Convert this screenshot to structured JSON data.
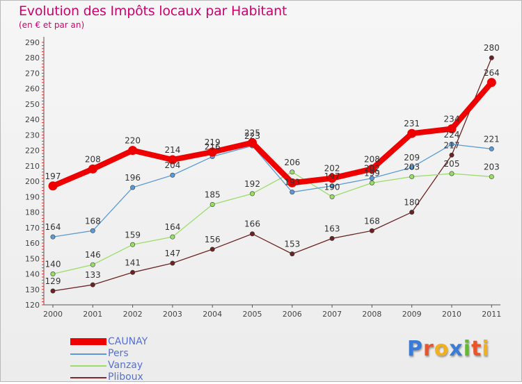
{
  "header": {
    "title": "Evolution des Impôts locaux par Habitant",
    "subtitle": "(en € et par an)"
  },
  "legend": [
    {
      "name": "CAUNAY",
      "color": "#ee0000"
    },
    {
      "name": "Pers",
      "color": "#5b9bd5"
    },
    {
      "name": "Vanzay",
      "color": "#99dd66"
    },
    {
      "name": "Pliboux",
      "color": "#7a2c2c"
    }
  ],
  "logo": {
    "letters": [
      "P",
      "r",
      "o",
      "x",
      "i",
      "t",
      "i"
    ],
    "colors": [
      "#3a7bd5",
      "#e8542c",
      "#f2b01e",
      "#3a7bd5",
      "#65b832",
      "#e8542c",
      "#f2b01e"
    ]
  },
  "chart_data": {
    "type": "line",
    "title": "Evolution des Impôts locaux par Habitant",
    "subtitle": "(en € et par an)",
    "xlabel": "",
    "ylabel": "",
    "categories": [
      "2000",
      "2001",
      "2002",
      "2003",
      "2004",
      "2005",
      "2006",
      "2007",
      "2008",
      "2009",
      "2010",
      "2011"
    ],
    "ylim": [
      120,
      290
    ],
    "yticks": [
      120,
      130,
      140,
      150,
      160,
      170,
      180,
      190,
      200,
      210,
      220,
      230,
      240,
      250,
      260,
      270,
      280,
      290
    ],
    "grid": false,
    "legend_position": "bottom-left",
    "series": [
      {
        "name": "CAUNAY",
        "color": "#ee0000",
        "values": [
          197,
          208,
          220,
          214,
          219,
          225,
          199,
          202,
          208,
          231,
          234,
          264
        ],
        "labels": [
          "197",
          "208",
          "220",
          "214",
          "219",
          "225",
          "",
          "202",
          "208",
          "231",
          "234",
          "264"
        ]
      },
      {
        "name": "Pers",
        "color": "#5b9bd5",
        "values": [
          164,
          168,
          196,
          204,
          216,
          223,
          193,
          197,
          202,
          209,
          224,
          221
        ],
        "labels": [
          "164",
          "168",
          "196",
          "204",
          "216",
          "223",
          "193",
          "197",
          "202",
          "209",
          "224",
          "221"
        ]
      },
      {
        "name": "Vanzay",
        "color": "#99dd66",
        "values": [
          140,
          146,
          159,
          164,
          185,
          192,
          206,
          190,
          199,
          203,
          205,
          203
        ],
        "labels": [
          "140",
          "146",
          "159",
          "164",
          "185",
          "192",
          "206",
          "190",
          "199",
          "203",
          "205",
          "203"
        ]
      },
      {
        "name": "Pliboux",
        "color": "#6b2222",
        "values": [
          129,
          133,
          141,
          147,
          156,
          166,
          153,
          163,
          168,
          180,
          217,
          280
        ],
        "labels": [
          "129",
          "133",
          "141",
          "147",
          "156",
          "166",
          "153",
          "163",
          "168",
          "180",
          "217",
          "280"
        ]
      }
    ]
  }
}
